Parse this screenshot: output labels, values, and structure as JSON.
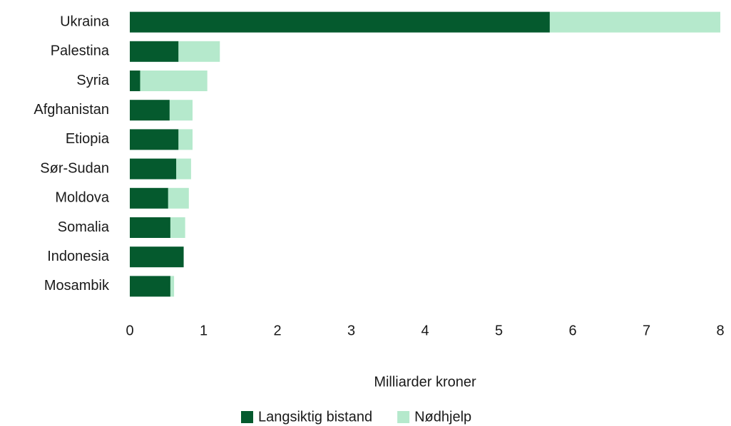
{
  "chart_data": {
    "type": "bar",
    "orientation": "horizontal",
    "stacked": true,
    "categories": [
      "Ukraina",
      "Palestina",
      "Syria",
      "Afghanistan",
      "Etiopia",
      "Sør-Sudan",
      "Moldova",
      "Somalia",
      "Indonesia",
      "Mosambik"
    ],
    "series": [
      {
        "name": "Langsiktig bistand",
        "color": "#055a2e",
        "values": [
          5.69,
          0.66,
          0.14,
          0.54,
          0.66,
          0.63,
          0.52,
          0.55,
          0.73,
          0.55
        ]
      },
      {
        "name": "Nødhjelp",
        "color": "#b5e9cc",
        "values": [
          2.31,
          0.56,
          0.91,
          0.31,
          0.19,
          0.2,
          0.28,
          0.2,
          0,
          0.05
        ]
      }
    ],
    "x_label": "Milliarder kroner",
    "xlim": [
      0,
      8
    ],
    "xticks": [
      0,
      1,
      2,
      3,
      4,
      5,
      6,
      7,
      8
    ],
    "grid": false,
    "legend": "bottom"
  }
}
